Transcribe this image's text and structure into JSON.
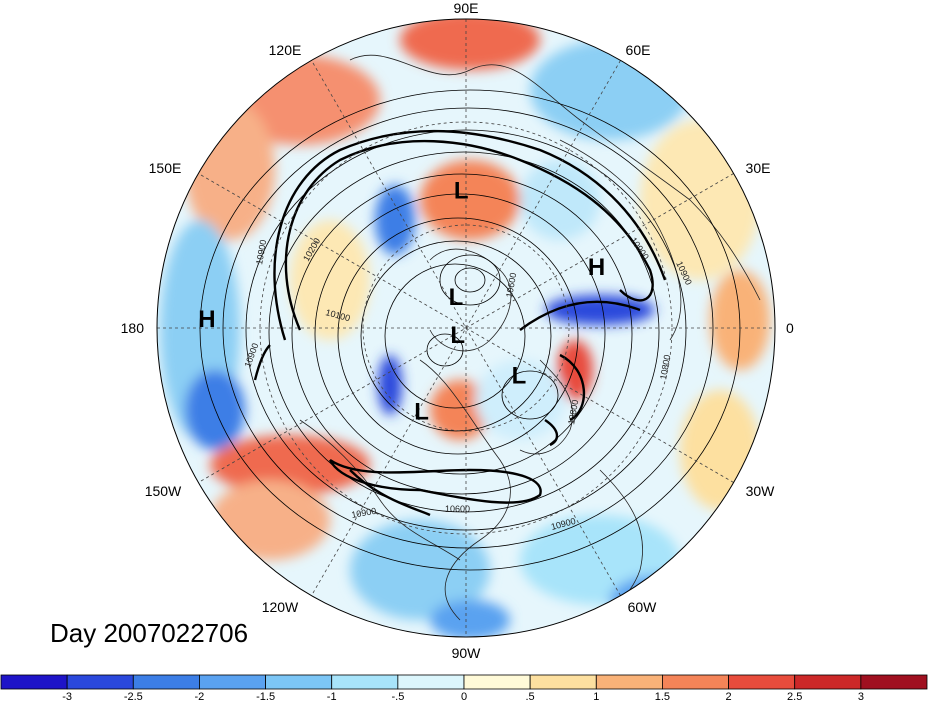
{
  "title": "Day 2007022706",
  "longitude_labels": [
    "90E",
    "60E",
    "30E",
    "0",
    "30W",
    "60W",
    "90W",
    "120W",
    "150W",
    "180",
    "150E",
    "120E"
  ],
  "pressure_centers": [
    {
      "type": "L",
      "lon": 92,
      "lat": 42
    },
    {
      "type": "H",
      "lon": 25,
      "lat": 40
    },
    {
      "type": "H",
      "lon": 178,
      "lat": 10
    },
    {
      "type": "L",
      "lon": 108,
      "lat": 78
    },
    {
      "type": "L",
      "lon": -140,
      "lat": 86
    },
    {
      "type": "L",
      "lon": -42,
      "lat": 64
    },
    {
      "type": "L",
      "lon": -118,
      "lat": 56
    }
  ],
  "contour_labels": [
    "10900",
    "10900",
    "10900",
    "10900",
    "10900",
    "10900",
    "10200",
    "10100",
    "10600",
    "10600",
    "10800",
    "10800"
  ],
  "colorbar": {
    "ticks": [
      "-3",
      "-2.5",
      "-2",
      "-1.5",
      "-1",
      "-.5",
      "0",
      ".5",
      "1",
      "1.5",
      "2",
      "2.5",
      "3"
    ],
    "colors": [
      "#1e14c8",
      "#2a48dc",
      "#3c7ee6",
      "#5aa2f0",
      "#7cc6f6",
      "#a8e4fa",
      "#dcf6fc",
      "#fffad8",
      "#fde0a0",
      "#f9b278",
      "#f48458",
      "#e84c3c",
      "#cc2828",
      "#a01020"
    ]
  },
  "chart_data": {
    "type": "heatmap",
    "projection": "north-polar-stereographic",
    "title": "Day 2007022706",
    "colorbar_range": [
      -3,
      3
    ],
    "colorbar_step": 0.5,
    "contour_values_labeled": [
      10100,
      10200,
      10600,
      10800,
      10900
    ]
  }
}
